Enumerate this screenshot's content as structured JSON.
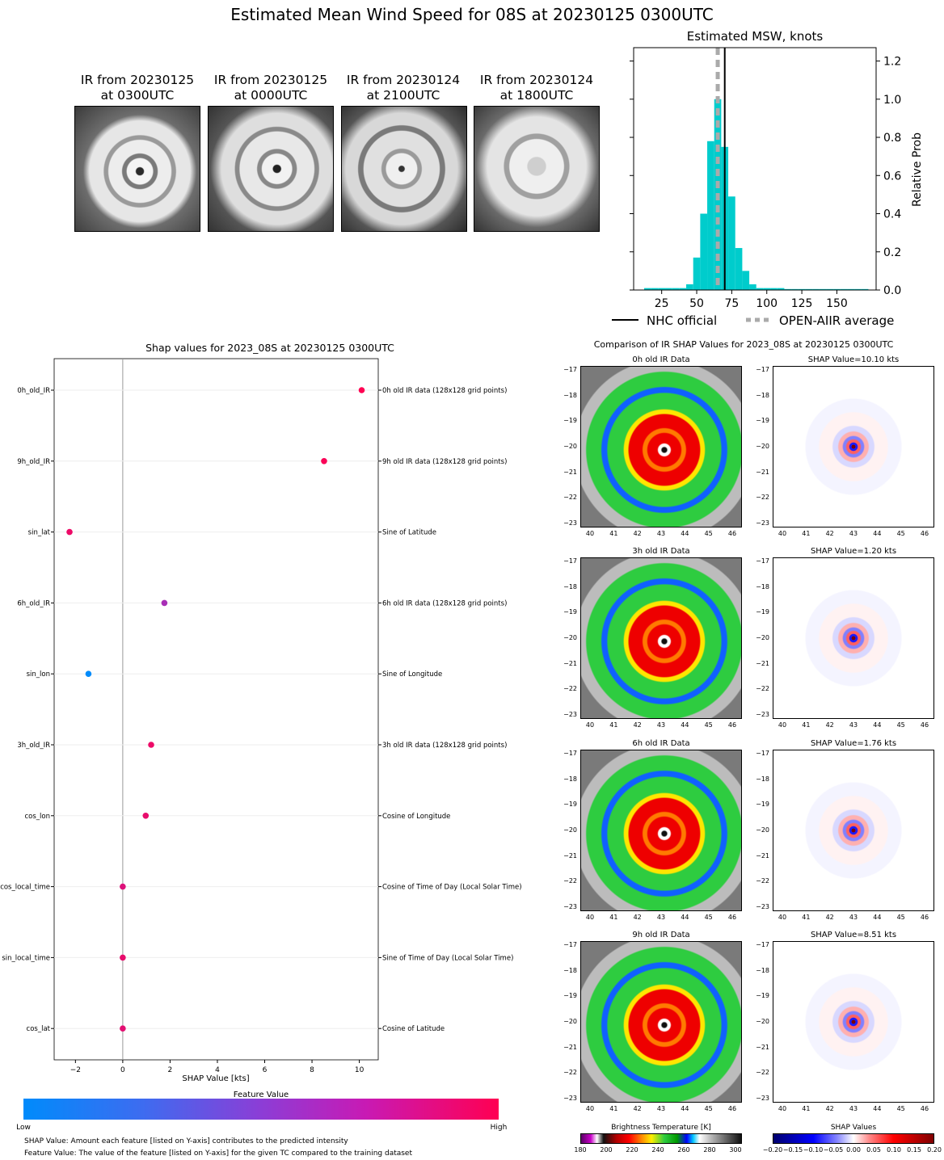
{
  "title": "Estimated Mean Wind Speed for 08S at 20230125 0300UTC",
  "ir_panels": [
    {
      "line1": "IR from 20230125",
      "line2": "at 0300UTC"
    },
    {
      "line1": "IR from 20230125",
      "line2": "at 0000UTC"
    },
    {
      "line1": "IR from 20230124",
      "line2": "at 2100UTC"
    },
    {
      "line1": "IR from 20230124",
      "line2": "at 1800UTC"
    }
  ],
  "colors": {
    "histogram": "#00cccc",
    "nhc": "#000000",
    "openaiir": "#aaaaaa",
    "beeswarm_low": "#008bfb",
    "beeswarm_high": "#ff0052"
  },
  "chart_data": [
    {
      "type": "bar",
      "title": "Estimated MSW, knots",
      "ylabel": "Relative Prob",
      "xlim": [
        5,
        178
      ],
      "ylim": [
        0,
        1.27
      ],
      "xticks": [
        "25",
        "50",
        "75",
        "100",
        "125",
        "150"
      ],
      "yticks": [
        "0.0",
        "0.2",
        "0.4",
        "0.6",
        "0.8",
        "1.0",
        "1.2"
      ],
      "bin_width": 5,
      "bins": [
        {
          "x": 15,
          "value": 0.01
        },
        {
          "x": 20,
          "value": 0.01
        },
        {
          "x": 25,
          "value": 0.01
        },
        {
          "x": 30,
          "value": 0.01
        },
        {
          "x": 35,
          "value": 0.01
        },
        {
          "x": 40,
          "value": 0.01
        },
        {
          "x": 45,
          "value": 0.03
        },
        {
          "x": 50,
          "value": 0.17
        },
        {
          "x": 55,
          "value": 0.4
        },
        {
          "x": 60,
          "value": 0.78
        },
        {
          "x": 65,
          "value": 1.0
        },
        {
          "x": 70,
          "value": 0.75
        },
        {
          "x": 75,
          "value": 0.49
        },
        {
          "x": 80,
          "value": 0.22
        },
        {
          "x": 85,
          "value": 0.1
        },
        {
          "x": 90,
          "value": 0.03
        },
        {
          "x": 95,
          "value": 0.01
        },
        {
          "x": 100,
          "value": 0.01
        },
        {
          "x": 105,
          "value": 0.01
        },
        {
          "x": 110,
          "value": 0.01
        },
        {
          "x": 115,
          "value": 0.005
        },
        {
          "x": 120,
          "value": 0.005
        },
        {
          "x": 125,
          "value": 0.005
        },
        {
          "x": 130,
          "value": 0.005
        },
        {
          "x": 135,
          "value": 0.005
        },
        {
          "x": 140,
          "value": 0.005
        },
        {
          "x": 145,
          "value": 0.005
        },
        {
          "x": 150,
          "value": 0.005
        },
        {
          "x": 155,
          "value": 0.005
        },
        {
          "x": 160,
          "value": 0.005
        },
        {
          "x": 165,
          "value": 0.005
        },
        {
          "x": 170,
          "value": 0.005
        }
      ],
      "nhc_official": 70,
      "openaiir_average": 65,
      "legend": [
        {
          "label": "NHC official"
        },
        {
          "label": "OPEN-AIIR average"
        }
      ],
      "legend_placement": "bottom"
    },
    {
      "type": "scatter",
      "title": "Shap values for 2023_08S at 20230125 0300UTC",
      "xlabel": "SHAP Value [kts]",
      "xlim": [
        -2.9,
        10.8
      ],
      "xticks": [
        "−2",
        "0",
        "2",
        "4",
        "6",
        "8",
        "10"
      ],
      "features": [
        {
          "name": "0h_old_IR",
          "desc": "0h old IR data (128x128 grid points)",
          "shap": 10.1,
          "feature_value": 1.0
        },
        {
          "name": "9h_old_IR",
          "desc": "9h old IR data (128x128 grid points)",
          "shap": 8.51,
          "feature_value": 0.98
        },
        {
          "name": "sin_lat",
          "desc": "Sine of Latitude",
          "shap": -2.25,
          "feature_value": 0.92
        },
        {
          "name": "6h_old_IR",
          "desc": "6h old IR data (128x128 grid points)",
          "shap": 1.76,
          "feature_value": 0.62
        },
        {
          "name": "sin_lon",
          "desc": "Sine of Longitude",
          "shap": -1.45,
          "feature_value": 0.0
        },
        {
          "name": "3h_old_IR",
          "desc": "3h old IR data (128x128 grid points)",
          "shap": 1.2,
          "feature_value": 0.92
        },
        {
          "name": "cos_lon",
          "desc": "Cosine of Longitude",
          "shap": 0.97,
          "feature_value": 0.9
        },
        {
          "name": "cos_local_time",
          "desc": "Cosine of Time of Day (Local Solar Time)",
          "shap": 0.0,
          "feature_value": 0.85
        },
        {
          "name": "sin_local_time",
          "desc": "Sine of Time of Day (Local Solar Time)",
          "shap": 0.0,
          "feature_value": 0.9
        },
        {
          "name": "cos_lat",
          "desc": "Cosine of Latitude",
          "shap": 0.0,
          "feature_value": 0.88
        }
      ],
      "colorbar": {
        "title": "Feature Value",
        "low": "Low",
        "high": "High"
      }
    }
  ],
  "notes": [
    "SHAP Value: Amount each feature [listed on Y-axis] contributes to the predicted intensity",
    "Feature Value: The value of the feature [listed on Y-axis] for the given TC compared to the training dataset"
  ],
  "comparison": {
    "title": "Comparison of IR SHAP Values for 2023_08S at 20230125 0300UTC",
    "yticks": [
      "−17",
      "−18",
      "−19",
      "−20",
      "−21",
      "−22",
      "−23"
    ],
    "xticks": [
      "40",
      "41",
      "42",
      "43",
      "44",
      "45",
      "46"
    ],
    "rows": [
      {
        "ir_title": "0h old IR Data",
        "shap_title": "SHAP Value=10.10 kts"
      },
      {
        "ir_title": "3h old IR Data",
        "shap_title": "SHAP Value=1.20 kts"
      },
      {
        "ir_title": "6h old IR Data",
        "shap_title": "SHAP Value=1.76 kts"
      },
      {
        "ir_title": "9h old IR Data",
        "shap_title": "SHAP Value=8.51 kts"
      }
    ],
    "bt_colorbar": {
      "title": "Brightness Temperature [K]",
      "ticks": [
        "180",
        "200",
        "220",
        "240",
        "260",
        "280",
        "300"
      ]
    },
    "shap_colorbar": {
      "title": "SHAP Values",
      "ticks": [
        "−0.20",
        "−0.15",
        "−0.10",
        "−0.05",
        "0.00",
        "0.05",
        "0.10",
        "0.15",
        "0.20"
      ]
    }
  }
}
